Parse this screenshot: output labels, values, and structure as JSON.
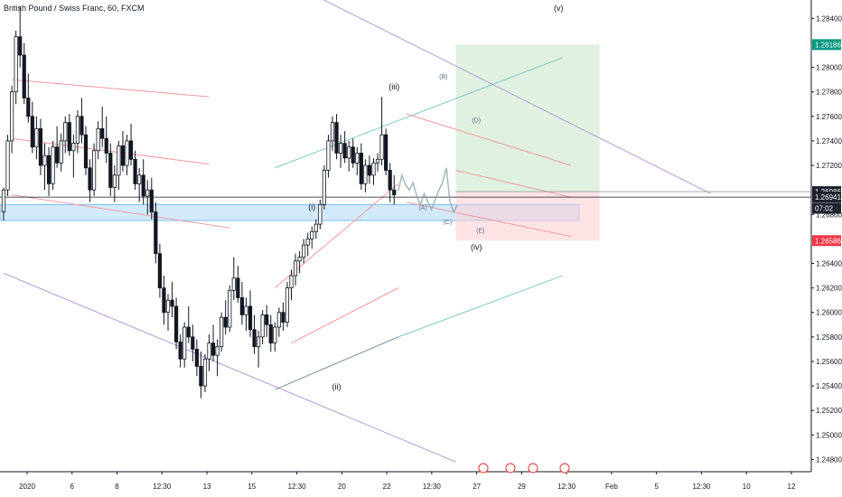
{
  "chart_data": {
    "type": "candlestick",
    "title": "British Pound / Swiss Franc, 60, FXCM",
    "price_axis": {
      "ticks": [
        "1.28400",
        "1.28000",
        "1.27800",
        "1.27600",
        "1.27400",
        "1.27200",
        "1.26800",
        "1.26400",
        "1.26200",
        "1.26000",
        "1.25800",
        "1.25600",
        "1.25400",
        "1.25200",
        "1.25000",
        "1.24800"
      ],
      "min": 1.247,
      "max": 1.2855
    },
    "time_axis": {
      "ticks": [
        "2020",
        "6",
        "8",
        "12:30",
        "13",
        "15",
        "12:30",
        "20",
        "22",
        "12:30",
        "27",
        "29",
        "12:30",
        "Feb",
        "5",
        "12:30",
        "10",
        "12"
      ]
    },
    "price_badges": [
      {
        "value": "1.28186",
        "price": 1.28186,
        "color": "#089981"
      },
      {
        "value": "1.26986",
        "price": 1.26986,
        "color": "#1e222d"
      },
      {
        "value": "1.26941",
        "price": 1.26941,
        "color": "#1e222d"
      },
      {
        "value": "07:02",
        "price": 1.2685,
        "color": "#1e222d"
      },
      {
        "value": "1.26586",
        "price": 1.26586,
        "color": "#f23645"
      }
    ],
    "wave_labels": [
      {
        "text": "(i)",
        "t": 75,
        "price": 1.2684
      },
      {
        "text": "(ii)",
        "t": 81,
        "price": 1.2537
      },
      {
        "text": "(iii)",
        "t": 95,
        "price": 1.2782
      },
      {
        "text": "(iv)",
        "t": 115,
        "price": 1.2651
      },
      {
        "text": "(v)",
        "t": 135,
        "price": 1.2846
      },
      {
        "text": "(A)",
        "t": 102,
        "price": 1.2684
      },
      {
        "text": "(B)",
        "t": 107,
        "price": 1.2791
      },
      {
        "text": "(C)",
        "t": 108,
        "price": 1.2672
      },
      {
        "text": "(D)",
        "t": 115,
        "price": 1.2755
      },
      {
        "text": "(E)",
        "t": 116,
        "price": 1.2665
      }
    ],
    "position": {
      "entry": 1.26986,
      "target": 1.28186,
      "stop": 1.26586,
      "start_t": 110,
      "end_t": 145
    },
    "support_zone": [
      1.2675,
      1.2688
    ],
    "candles": [
      [
        1.2682,
        1.2702,
        1.2675,
        1.27
      ],
      [
        1.27,
        1.2745,
        1.2695,
        1.274
      ],
      [
        1.274,
        1.2785,
        1.273,
        1.278
      ],
      [
        1.278,
        1.283,
        1.277,
        1.2825
      ],
      [
        1.2825,
        1.285,
        1.28,
        1.281
      ],
      [
        1.281,
        1.282,
        1.277,
        1.2775
      ],
      [
        1.2775,
        1.2795,
        1.2755,
        1.276
      ],
      [
        1.276,
        1.2772,
        1.273,
        1.2735
      ],
      [
        1.2735,
        1.276,
        1.2725,
        1.275
      ],
      [
        1.275,
        1.2758,
        1.2712,
        1.272
      ],
      [
        1.272,
        1.2738,
        1.27,
        1.2728
      ],
      [
        1.2728,
        1.2735,
        1.2695,
        1.2705
      ],
      [
        1.2705,
        1.274,
        1.27,
        1.2735
      ],
      [
        1.2735,
        1.2752,
        1.2718,
        1.2722
      ],
      [
        1.2722,
        1.2746,
        1.2715,
        1.274
      ],
      [
        1.274,
        1.276,
        1.273,
        1.2755
      ],
      [
        1.2755,
        1.2762,
        1.2728,
        1.2732
      ],
      [
        1.2732,
        1.2745,
        1.271,
        1.2738
      ],
      [
        1.2738,
        1.2765,
        1.273,
        1.276
      ],
      [
        1.276,
        1.2775,
        1.2738,
        1.2745
      ],
      [
        1.2745,
        1.2752,
        1.2712,
        1.2718
      ],
      [
        1.2718,
        1.2725,
        1.269,
        1.27
      ],
      [
        1.27,
        1.2738,
        1.2695,
        1.2732
      ],
      [
        1.2732,
        1.2756,
        1.2725,
        1.275
      ],
      [
        1.275,
        1.2768,
        1.2735,
        1.2742
      ],
      [
        1.2742,
        1.276,
        1.2722,
        1.273
      ],
      [
        1.273,
        1.2738,
        1.2695,
        1.2702
      ],
      [
        1.2702,
        1.272,
        1.269,
        1.2712
      ],
      [
        1.2712,
        1.274,
        1.27,
        1.2736
      ],
      [
        1.2736,
        1.2748,
        1.2715,
        1.272
      ],
      [
        1.272,
        1.2745,
        1.2712,
        1.274
      ],
      [
        1.274,
        1.2754,
        1.272,
        1.2725
      ],
      [
        1.2725,
        1.2732,
        1.27,
        1.2705
      ],
      [
        1.2705,
        1.2718,
        1.269,
        1.2712
      ],
      [
        1.2712,
        1.2725,
        1.2688,
        1.2695
      ],
      [
        1.2695,
        1.2708,
        1.268,
        1.27
      ],
      [
        1.27,
        1.271,
        1.2676,
        1.2682
      ],
      [
        1.2682,
        1.269,
        1.264,
        1.2648
      ],
      [
        1.2648,
        1.2656,
        1.2612,
        1.262
      ],
      [
        1.262,
        1.263,
        1.259,
        1.26
      ],
      [
        1.26,
        1.2615,
        1.2585,
        1.261
      ],
      [
        1.261,
        1.2625,
        1.2596,
        1.2605
      ],
      [
        1.2605,
        1.2612,
        1.257,
        1.2576
      ],
      [
        1.2576,
        1.2582,
        1.2555,
        1.2562
      ],
      [
        1.2562,
        1.2592,
        1.2555,
        1.2588
      ],
      [
        1.2588,
        1.2605,
        1.2575,
        1.258
      ],
      [
        1.258,
        1.259,
        1.256,
        1.257
      ],
      [
        1.257,
        1.2578,
        1.2548,
        1.2556
      ],
      [
        1.2556,
        1.2568,
        1.253,
        1.254
      ],
      [
        1.254,
        1.2566,
        1.2535,
        1.2562
      ],
      [
        1.2562,
        1.2582,
        1.2552,
        1.2575
      ],
      [
        1.2575,
        1.259,
        1.256,
        1.2565
      ],
      [
        1.2565,
        1.2578,
        1.2548,
        1.2572
      ],
      [
        1.2572,
        1.26,
        1.2568,
        1.2596
      ],
      [
        1.2596,
        1.261,
        1.2582,
        1.2588
      ],
      [
        1.2588,
        1.2622,
        1.2584,
        1.2618
      ],
      [
        1.2618,
        1.2645,
        1.261,
        1.2628
      ],
      [
        1.2628,
        1.2638,
        1.2608,
        1.2612
      ],
      [
        1.2612,
        1.2625,
        1.259,
        1.2598
      ],
      [
        1.2598,
        1.2612,
        1.2585,
        1.2605
      ],
      [
        1.2605,
        1.2618,
        1.258,
        1.2586
      ],
      [
        1.2586,
        1.2598,
        1.2566,
        1.2572
      ],
      [
        1.2572,
        1.2585,
        1.2555,
        1.258
      ],
      [
        1.258,
        1.2602,
        1.2574,
        1.2598
      ],
      [
        1.2598,
        1.2606,
        1.258,
        1.259
      ],
      [
        1.259,
        1.2598,
        1.2568,
        1.2575
      ],
      [
        1.2575,
        1.2592,
        1.2568,
        1.2588
      ],
      [
        1.2588,
        1.2604,
        1.258,
        1.26
      ],
      [
        1.26,
        1.2608,
        1.2585,
        1.2592
      ],
      [
        1.2592,
        1.2625,
        1.2588,
        1.262
      ],
      [
        1.262,
        1.2635,
        1.261,
        1.263
      ],
      [
        1.263,
        1.2648,
        1.2622,
        1.2642
      ],
      [
        1.2642,
        1.265,
        1.2632,
        1.2645
      ],
      [
        1.2645,
        1.266,
        1.264,
        1.2655
      ],
      [
        1.2655,
        1.2665,
        1.2646,
        1.266
      ],
      [
        1.266,
        1.267,
        1.2652,
        1.2666
      ],
      [
        1.2666,
        1.2676,
        1.266,
        1.2672
      ],
      [
        1.2672,
        1.2692,
        1.2668,
        1.2688
      ],
      [
        1.2688,
        1.272,
        1.2684,
        1.2716
      ],
      [
        1.2716,
        1.2745,
        1.271,
        1.274
      ],
      [
        1.274,
        1.276,
        1.2732,
        1.2755
      ],
      [
        1.2755,
        1.2762,
        1.2725,
        1.273
      ],
      [
        1.273,
        1.2745,
        1.2718,
        1.2738
      ],
      [
        1.2738,
        1.2748,
        1.2722,
        1.2726
      ],
      [
        1.2726,
        1.274,
        1.2715,
        1.2735
      ],
      [
        1.2735,
        1.2742,
        1.2718,
        1.2722
      ],
      [
        1.2722,
        1.2735,
        1.2712,
        1.273
      ],
      [
        1.273,
        1.2738,
        1.27,
        1.2705
      ],
      [
        1.2705,
        1.2725,
        1.2698,
        1.272
      ],
      [
        1.272,
        1.2728,
        1.2705,
        1.2712
      ],
      [
        1.2712,
        1.2726,
        1.2704,
        1.2722
      ],
      [
        1.2722,
        1.273,
        1.2715,
        1.2725
      ],
      [
        1.2725,
        1.2776,
        1.272,
        1.2745
      ],
      [
        1.2745,
        1.275,
        1.2712,
        1.2716
      ],
      [
        1.2716,
        1.2722,
        1.269,
        1.27
      ],
      [
        1.27,
        1.2712,
        1.2688,
        1.2696
      ]
    ],
    "forecast_path": [
      1.2699,
      1.2712,
      1.2704,
      1.27,
      1.2706,
      1.2695,
      1.2688,
      1.2697,
      1.269,
      1.2684,
      1.2692,
      1.27,
      1.2706,
      1.2718,
      1.269,
      1.2682,
      1.2688
    ],
    "grid": false,
    "legend": "none"
  }
}
